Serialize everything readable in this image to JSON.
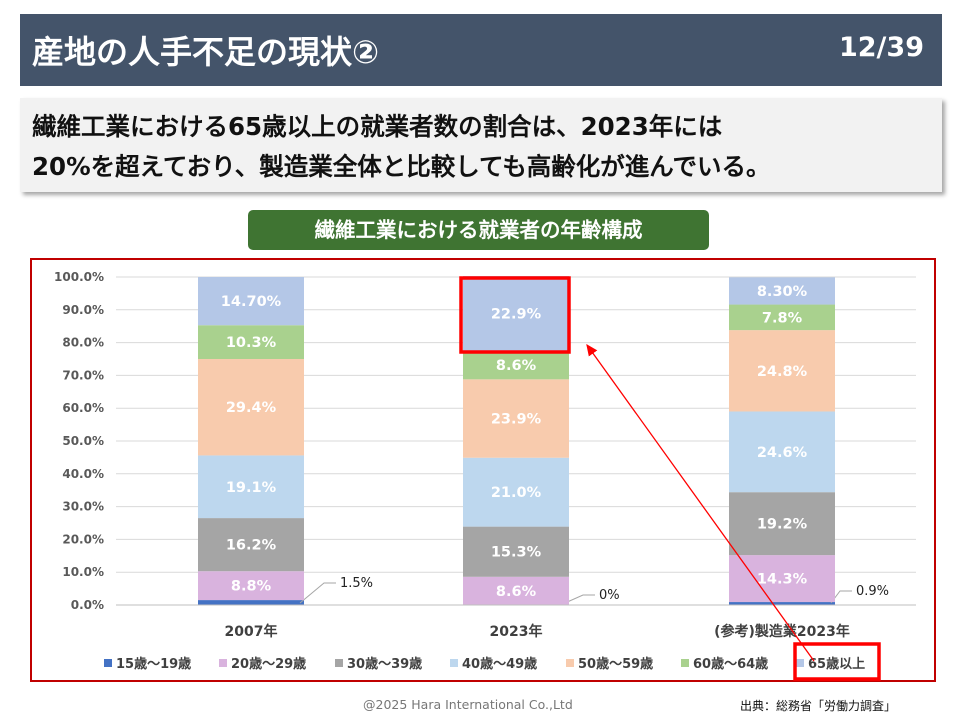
{
  "header": {
    "title": "産地の人手不足の現状②",
    "page": "12/39"
  },
  "lead": {
    "line1": "繊維工業における65歳以上の就業者数の割合は、2023年には",
    "line2": "20%を超えており、製造業全体と比較しても高齢化が進んでいる。"
  },
  "chart_title": "繊維工業における就業者の年齢構成",
  "chart_data": {
    "type": "bar",
    "stacked": true,
    "categories": [
      "2007年",
      "2023年",
      "(参考)製造業2023年"
    ],
    "ylim": [
      0,
      100
    ],
    "yticks": [
      "0.0%",
      "10.0%",
      "20.0%",
      "30.0%",
      "40.0%",
      "50.0%",
      "60.0%",
      "70.0%",
      "80.0%",
      "90.0%",
      "100.0%"
    ],
    "legend_position": "bottom",
    "series": [
      {
        "name": "15歳～19歳",
        "color": "#4472c4",
        "values": [
          1.5,
          0,
          0.9
        ],
        "labels": [
          "1.5%",
          "0%",
          "0.9%"
        ]
      },
      {
        "name": "20歳～29歳",
        "color": "#d9b3de",
        "values": [
          8.8,
          8.6,
          14.3
        ],
        "labels": [
          "8.8%",
          "8.6%",
          "14.3%"
        ]
      },
      {
        "name": "30歳～39歳",
        "color": "#a5a5a5",
        "values": [
          16.2,
          15.3,
          19.2
        ],
        "labels": [
          "16.2%",
          "15.3%",
          "19.2%"
        ]
      },
      {
        "name": "40歳～49歳",
        "color": "#bdd7ee",
        "values": [
          19.1,
          21.0,
          24.6
        ],
        "labels": [
          "19.1%",
          "21.0%",
          "24.6%"
        ]
      },
      {
        "name": "50歳～59歳",
        "color": "#f8cbad",
        "values": [
          29.4,
          23.9,
          24.8
        ],
        "labels": [
          "29.4%",
          "23.9%",
          "24.8%"
        ]
      },
      {
        "name": "60歳～64歳",
        "color": "#a9d18e",
        "values": [
          10.3,
          8.6,
          7.8
        ],
        "labels": [
          "10.3%",
          "8.6%",
          "7.8%"
        ]
      },
      {
        "name": "65歳以上",
        "color": "#b4c7e7",
        "values": [
          14.7,
          22.9,
          8.3
        ],
        "labels": [
          "14.70%",
          "22.9%",
          "8.30%"
        ]
      }
    ]
  },
  "footer": {
    "copyright": "@2025 Hara International Co.,Ltd",
    "source": "出典：総務省「労働力調査」"
  }
}
